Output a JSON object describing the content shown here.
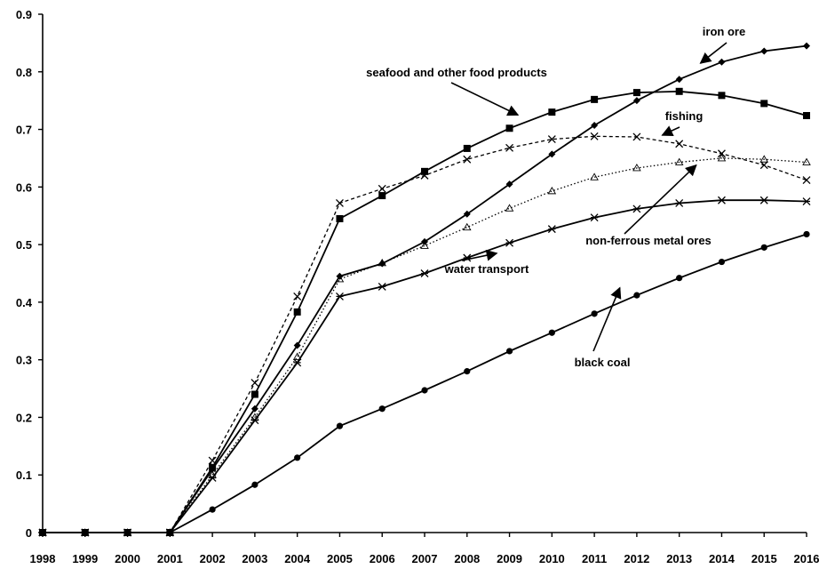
{
  "chart_data": {
    "type": "line",
    "title": "",
    "xlabel": "",
    "ylabel": "",
    "x": [
      1998,
      1999,
      2000,
      2001,
      2002,
      2003,
      2004,
      2005,
      2006,
      2007,
      2008,
      2009,
      2010,
      2011,
      2012,
      2013,
      2014,
      2015,
      2016
    ],
    "xlim": [
      1998,
      2016
    ],
    "ylim": [
      0,
      0.9
    ],
    "yticks": [
      "0",
      "0.1",
      "0.2",
      "0.3",
      "0.4",
      "0.5",
      "0.6",
      "0.7",
      "0.8",
      "0.9"
    ],
    "grid": false,
    "legend": "none (series labelled by arrow annotations)",
    "series": [
      {
        "name": "iron ore",
        "marker": "diamond",
        "line": "solid",
        "color": "#000000",
        "values": [
          0,
          0,
          0,
          0,
          0.11,
          0.215,
          0.325,
          0.445,
          0.467,
          0.505,
          0.553,
          0.605,
          0.657,
          0.707,
          0.75,
          0.787,
          0.817,
          0.836,
          0.845
        ]
      },
      {
        "name": "seafood and other food products",
        "marker": "square",
        "line": "solid",
        "color": "#000000",
        "values": [
          0,
          0,
          0,
          0,
          0.113,
          0.24,
          0.383,
          0.545,
          0.585,
          0.627,
          0.667,
          0.702,
          0.73,
          0.752,
          0.764,
          0.766,
          0.759,
          0.745,
          0.724
        ]
      },
      {
        "name": "fishing",
        "marker": "x",
        "line": "dashed",
        "color": "#000000",
        "values": [
          0,
          0,
          0,
          0,
          0.125,
          0.26,
          0.41,
          0.572,
          0.597,
          0.62,
          0.648,
          0.668,
          0.683,
          0.688,
          0.687,
          0.675,
          0.658,
          0.638,
          0.612
        ]
      },
      {
        "name": "non-ferrous metal ores",
        "marker": "triangle",
        "line": "dotted",
        "color": "#000000",
        "values": [
          0,
          0,
          0,
          0,
          0.1,
          0.2,
          0.305,
          0.44,
          0.468,
          0.498,
          0.53,
          0.563,
          0.593,
          0.617,
          0.633,
          0.643,
          0.65,
          0.648,
          0.643
        ]
      },
      {
        "name": "water transport",
        "marker": "asterisk",
        "line": "solid",
        "color": "#000000",
        "values": [
          0,
          0,
          0,
          0,
          0.095,
          0.195,
          0.295,
          0.41,
          0.427,
          0.45,
          0.477,
          0.503,
          0.527,
          0.547,
          0.562,
          0.572,
          0.577,
          0.577,
          0.575
        ]
      },
      {
        "name": "black coal",
        "marker": "circle",
        "line": "solid",
        "color": "#000000",
        "values": [
          0,
          0,
          0,
          0,
          0.04,
          0.083,
          0.13,
          0.185,
          0.215,
          0.247,
          0.28,
          0.315,
          0.347,
          0.38,
          0.412,
          0.442,
          0.47,
          0.495,
          0.518
        ]
      }
    ],
    "annotations": [
      {
        "text": "iron ore",
        "series": "iron ore",
        "x": 2013.5,
        "y": 0.815
      },
      {
        "text": "seafood and other food products",
        "series": "seafood and other food products",
        "x": 2009.2,
        "y": 0.725
      },
      {
        "text": "fishing",
        "series": "fishing",
        "x": 2012.6,
        "y": 0.69
      },
      {
        "text": "non-ferrous metal ores",
        "series": "non-ferrous metal ores",
        "x": 2013.4,
        "y": 0.638
      },
      {
        "text": "water transport",
        "series": "water transport",
        "x": 2008.7,
        "y": 0.485
      },
      {
        "text": "black coal",
        "series": "black coal",
        "x": 2011.6,
        "y": 0.425
      }
    ]
  }
}
